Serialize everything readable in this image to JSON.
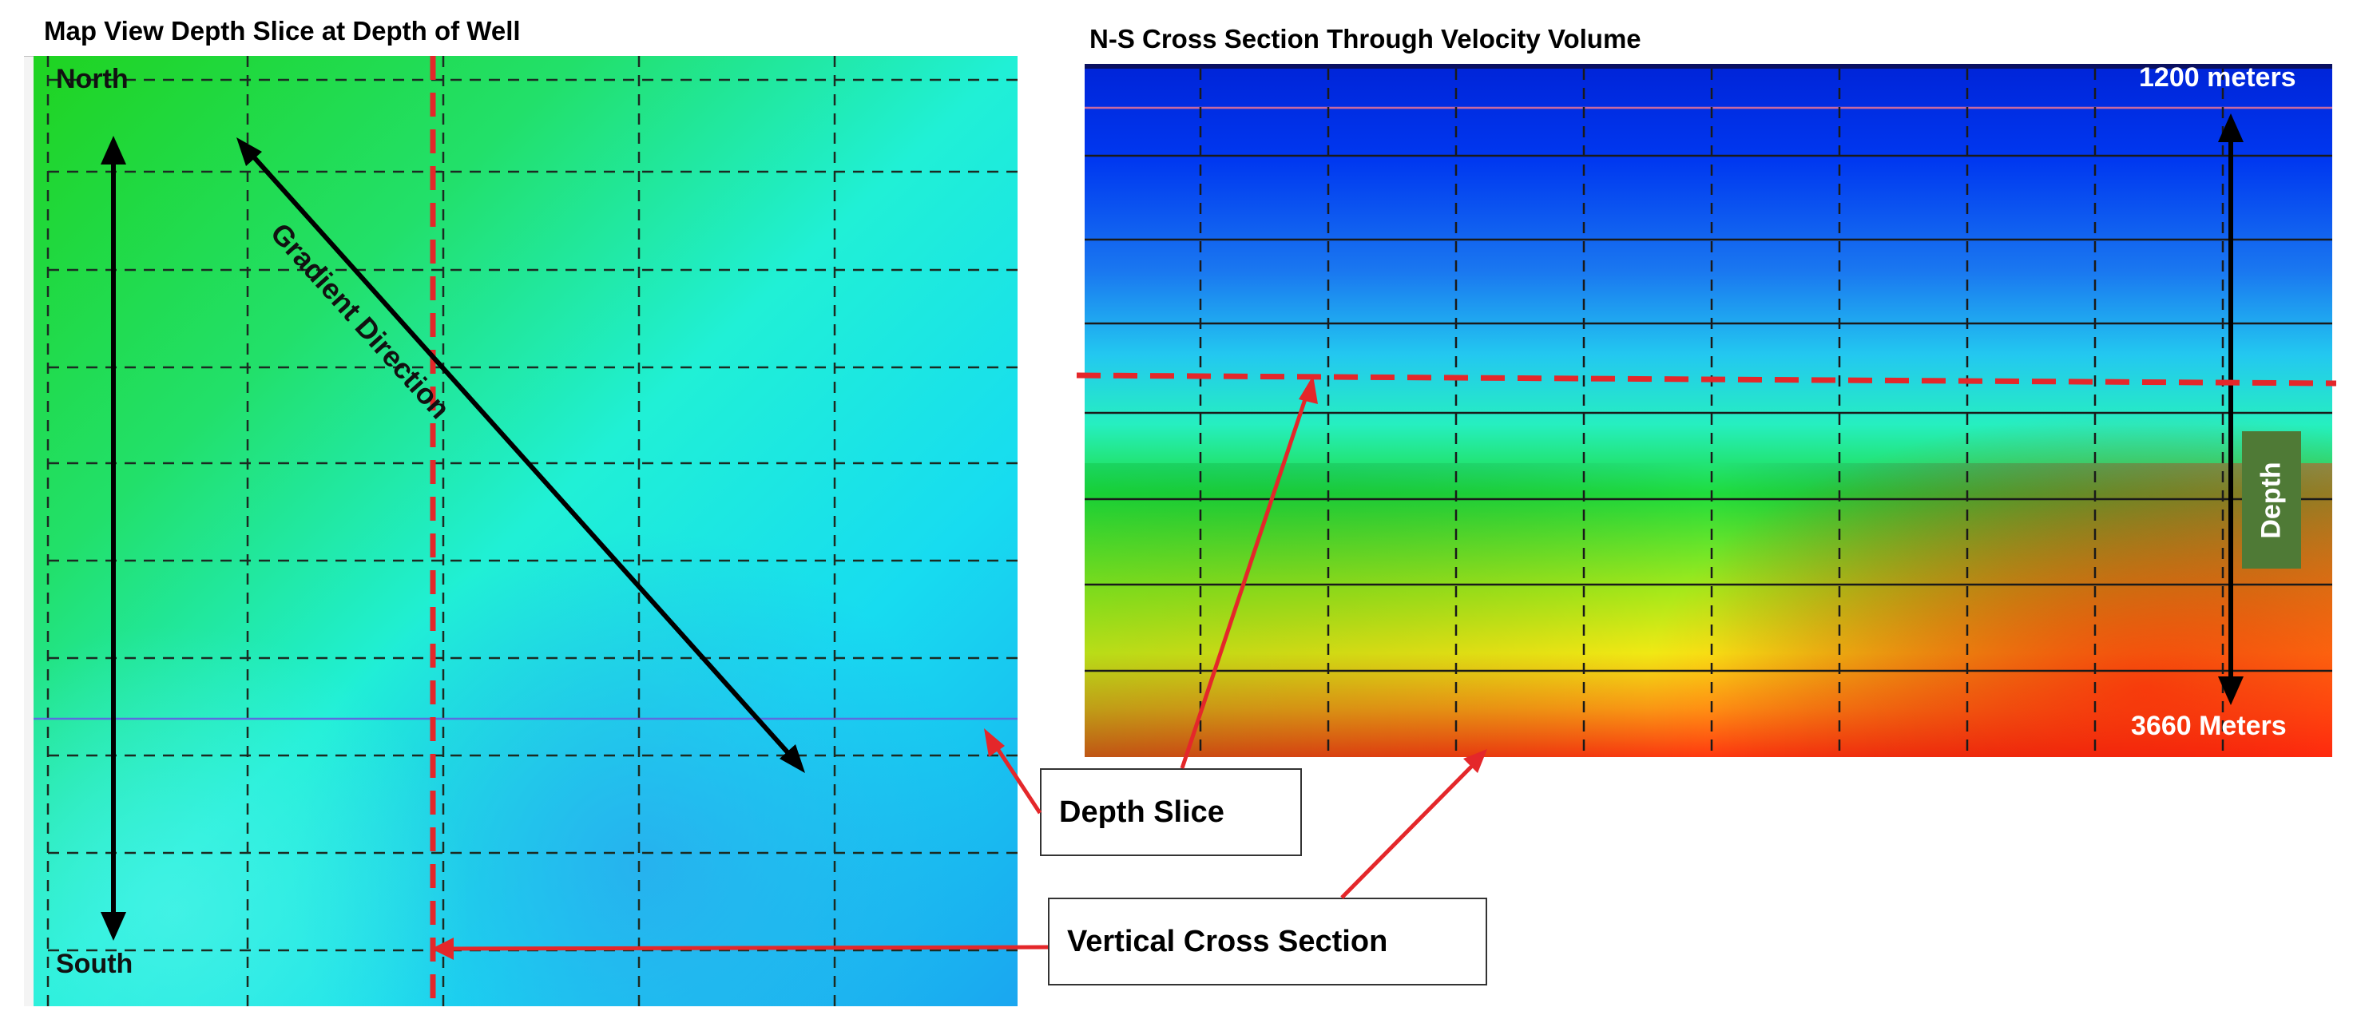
{
  "left_panel": {
    "title": "Map View Depth Slice at Depth of Well",
    "north_label": "North",
    "south_label": "South",
    "gradient_label": "Gradient Direction"
  },
  "right_panel": {
    "title": "N-S Cross Section Through Velocity Volume",
    "top_depth_label": "1200 meters",
    "bottom_depth_label": "3660 Meters",
    "depth_label": "Depth"
  },
  "callouts": {
    "depth_slice": "Depth Slice",
    "vertical_cross_section": "Vertical Cross Section"
  },
  "colors": {
    "annotation_red": "#e4272a",
    "depth_badge": "#4f7a36"
  }
}
